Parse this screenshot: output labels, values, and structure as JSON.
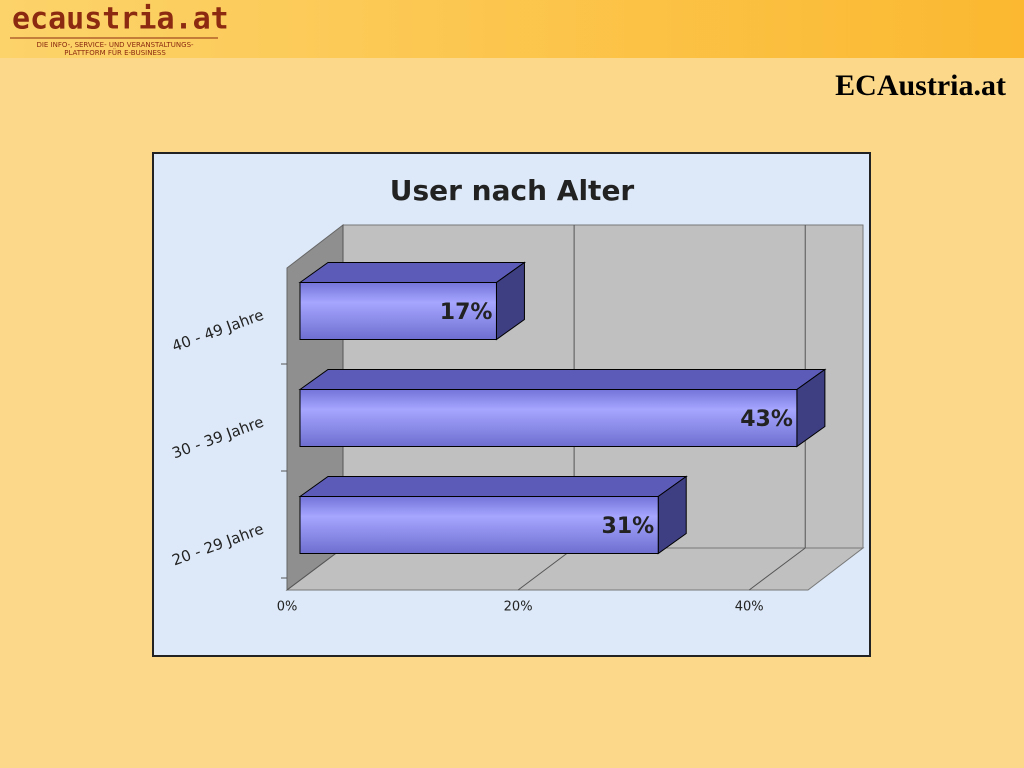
{
  "header": {
    "logo": "ecaustria.at",
    "tagline": [
      "DIE INFO-, SERVICE- UND VERANSTALTUNGS-",
      "PLATTFORM FÜR E-BUSINESS"
    ],
    "brand": "ECAustria.at"
  },
  "chart_data": {
    "type": "bar",
    "orientation": "horizontal",
    "title": "User nach Alter",
    "categories": [
      "20 - 29 Jahre",
      "30 - 39 Jahre",
      "40 - 49 Jahre"
    ],
    "values": [
      31,
      43,
      17
    ],
    "value_labels": [
      "31%",
      "43%",
      "17%"
    ],
    "color": "#9999ff",
    "xlim": [
      0,
      45
    ],
    "xticks": [
      {
        "value": 0,
        "label": "0%"
      },
      {
        "value": 20,
        "label": "20%"
      },
      {
        "value": 40,
        "label": "40%"
      }
    ],
    "grid": true
  }
}
